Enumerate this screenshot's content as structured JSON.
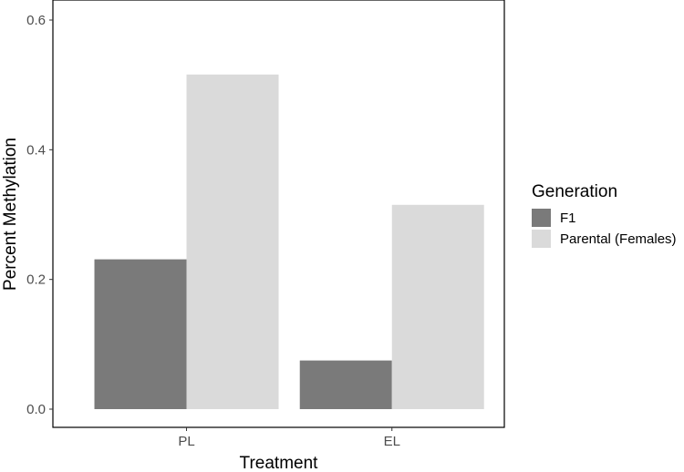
{
  "chart_data": {
    "type": "bar",
    "title": "",
    "xlabel": "Treatment",
    "ylabel": "Percent Methylation",
    "categories": [
      "PL",
      "EL"
    ],
    "series": [
      {
        "name": "F1",
        "values": [
          0.231,
          0.075
        ],
        "color": "#7a7a7a"
      },
      {
        "name": "Parental (Females)",
        "values": [
          0.516,
          0.315
        ],
        "color": "#dadada"
      }
    ],
    "ylim": [
      0,
      0.6
    ],
    "yticks": [
      0.0,
      0.2,
      0.4,
      0.6
    ],
    "ytick_labels": [
      "0.0",
      "0.2",
      "0.4",
      "0.6"
    ],
    "grid": false,
    "legend": {
      "title": "Generation",
      "position": "right"
    }
  }
}
